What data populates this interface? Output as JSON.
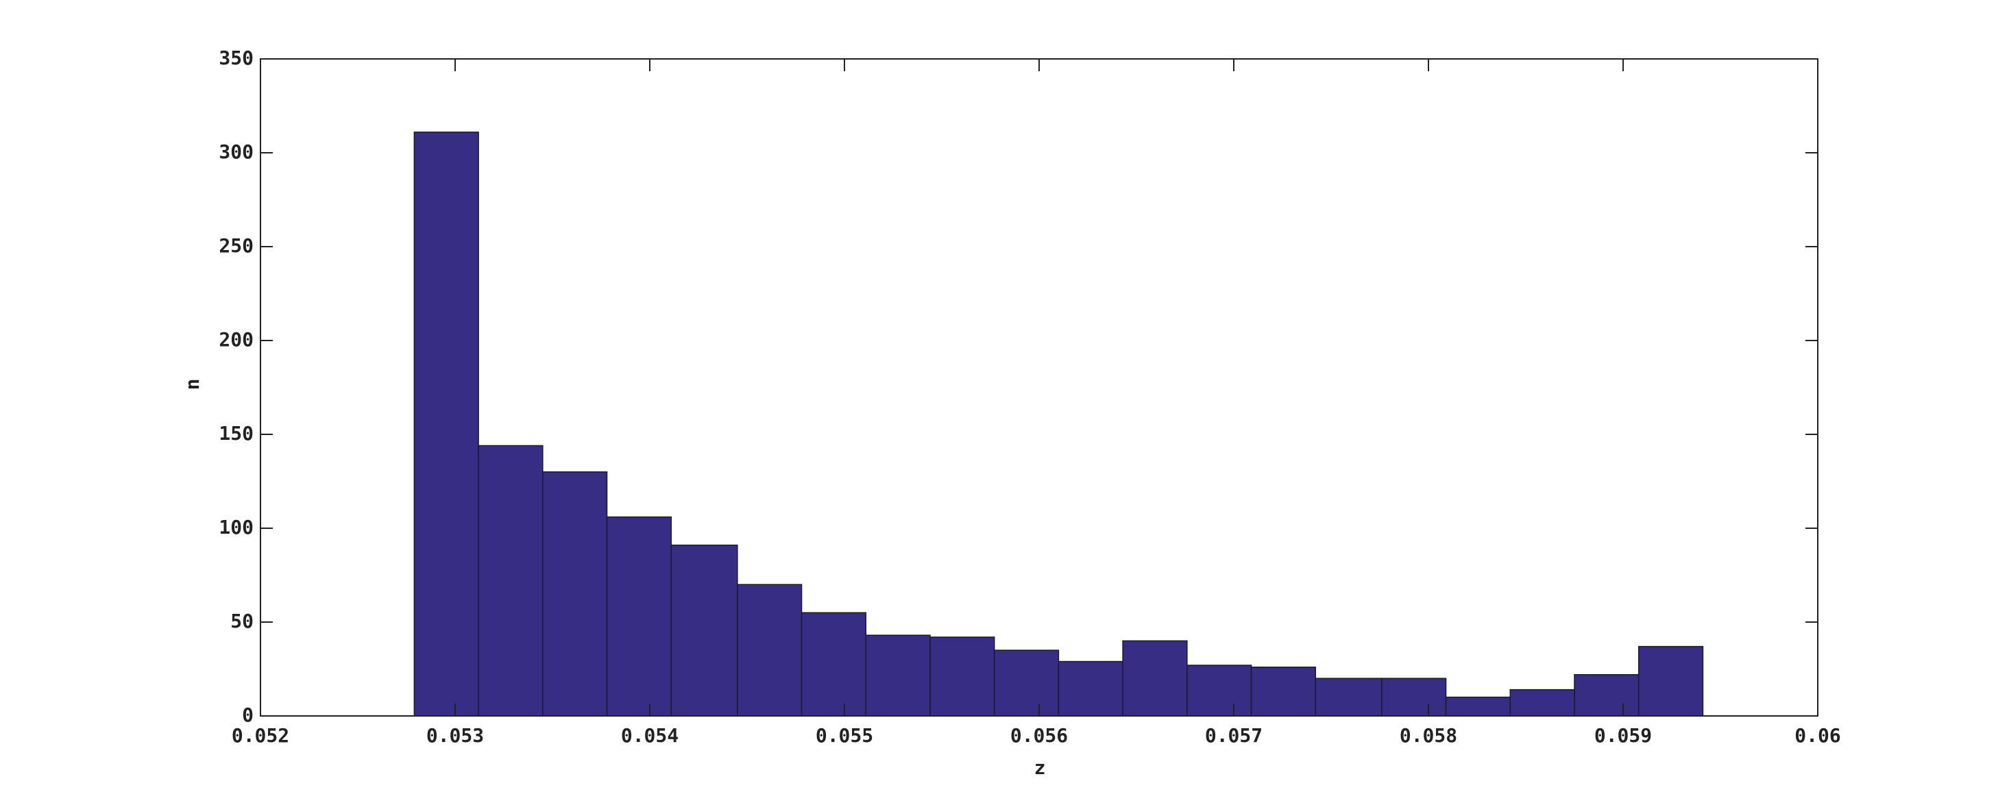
{
  "chart_data": {
    "type": "histogram",
    "x_label": "z",
    "y_label": "n",
    "bins": [
      0.05279,
      0.05312,
      0.05345,
      0.05378,
      0.05411,
      0.05445,
      0.05478,
      0.05511,
      0.05544,
      0.05577,
      0.0561,
      0.05643,
      0.05676,
      0.05709,
      0.05742,
      0.05776,
      0.05809,
      0.05842,
      0.05875,
      0.05908,
      0.05941
    ],
    "values": [
      311,
      144,
      130,
      106,
      91,
      70,
      55,
      43,
      42,
      35,
      29,
      40,
      27,
      26,
      20,
      20,
      10,
      14,
      22,
      37
    ],
    "color": "#372d85",
    "xlim": [
      0.052,
      0.06
    ],
    "xticks": [
      0.052,
      0.053,
      0.054,
      0.055,
      0.056,
      0.057,
      0.058,
      0.059,
      0.06
    ],
    "ylim": [
      0,
      350
    ],
    "yticks": [
      0,
      50,
      100,
      150,
      200,
      250,
      300,
      350
    ]
  }
}
